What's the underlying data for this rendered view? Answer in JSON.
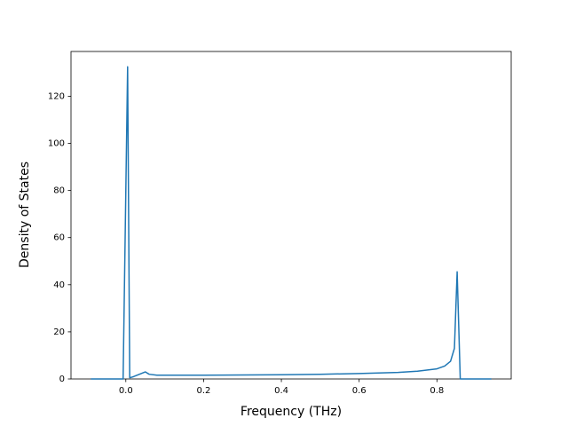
{
  "chart_data": {
    "type": "line",
    "x_label": "Frequency (THz)",
    "y_label": "Density of States",
    "x": [
      -0.09,
      -0.007,
      0.0046,
      0.01,
      0.02,
      0.05,
      0.06,
      0.08,
      0.2,
      0.4,
      0.5,
      0.6,
      0.7,
      0.75,
      0.8,
      0.82,
      0.835,
      0.845,
      0.852,
      0.86,
      0.94
    ],
    "series": [
      {
        "color": "#1f77b4",
        "values": [
          0,
          0,
          132.5,
          0.5,
          1,
          3,
          2,
          1.6,
          1.6,
          1.8,
          2,
          2.3,
          2.8,
          3.3,
          4.3,
          5.5,
          7.5,
          13,
          45.5,
          0,
          0
        ]
      }
    ],
    "xlim": [
      -0.141,
      0.991
    ],
    "ylim": [
      0,
      139
    ],
    "xticks": [
      {
        "value": 0,
        "label": "0.0"
      },
      0.2,
      0.4,
      0.6,
      0.8
    ],
    "yticks": [
      0,
      20,
      40,
      60,
      80,
      100,
      120
    ]
  }
}
